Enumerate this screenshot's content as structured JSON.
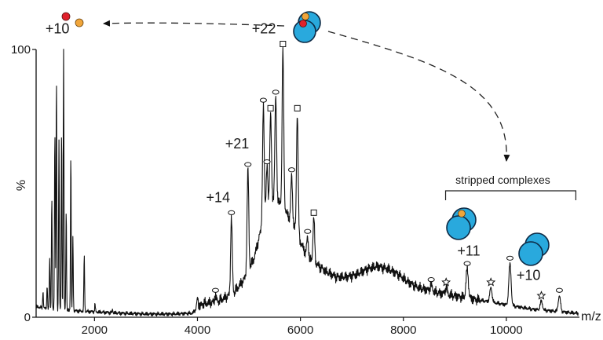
{
  "chart_data": {
    "type": "line",
    "title": "",
    "xlabel": "m/z",
    "ylabel": "%",
    "xlim": [
      1000,
      11400
    ],
    "ylim": [
      0,
      100
    ],
    "x_ticks": [
      {
        "value": 2000,
        "label": "2000"
      },
      {
        "value": 4000,
        "label": "4000"
      },
      {
        "value": 6000,
        "label": "6000"
      },
      {
        "value": 8000,
        "label": "8000"
      },
      {
        "value": 10000,
        "label": "10000"
      }
    ],
    "y_ticks": [
      {
        "value": 0,
        "label": "0"
      },
      {
        "value": 100,
        "label": "100"
      }
    ],
    "baseline": [
      [
        860,
        4
      ],
      [
        1100,
        3
      ],
      [
        1500,
        2.5
      ],
      [
        2000,
        2
      ],
      [
        2500,
        1.5
      ],
      [
        3000,
        1.2
      ],
      [
        3500,
        1.2
      ],
      [
        3900,
        1.5
      ],
      [
        4100,
        5
      ],
      [
        4400,
        6
      ],
      [
        4700,
        9
      ],
      [
        4900,
        14
      ],
      [
        5100,
        22
      ],
      [
        5300,
        38
      ],
      [
        5500,
        45
      ],
      [
        5700,
        40
      ],
      [
        5850,
        35
      ],
      [
        6000,
        28
      ],
      [
        6150,
        22
      ],
      [
        6300,
        20
      ],
      [
        6500,
        17
      ],
      [
        6700,
        15
      ],
      [
        6900,
        15
      ],
      [
        7100,
        16
      ],
      [
        7300,
        18
      ],
      [
        7500,
        19
      ],
      [
        7700,
        18
      ],
      [
        7900,
        16
      ],
      [
        8100,
        13
      ],
      [
        8300,
        11
      ],
      [
        8500,
        10
      ],
      [
        8700,
        9
      ],
      [
        9000,
        8
      ],
      [
        9300,
        7
      ],
      [
        9600,
        6
      ],
      [
        9900,
        5
      ],
      [
        10200,
        4
      ],
      [
        10500,
        3
      ],
      [
        10800,
        2.5
      ],
      [
        11100,
        2
      ],
      [
        11350,
        1.5
      ]
    ],
    "peaks": [
      {
        "mz": 1000,
        "intensity": 10,
        "marker": ""
      },
      {
        "mz": 1080,
        "intensity": 12,
        "marker": ""
      },
      {
        "mz": 1130,
        "intensity": 22,
        "marker": ""
      },
      {
        "mz": 1170,
        "intensity": 45,
        "marker": ""
      },
      {
        "mz": 1230,
        "intensity": 70,
        "marker": ""
      },
      {
        "mz": 1260,
        "intensity": 89,
        "marker": ""
      },
      {
        "mz": 1310,
        "intensity": 66,
        "marker": ""
      },
      {
        "mz": 1360,
        "intensity": 70,
        "marker": ""
      },
      {
        "mz": 1400,
        "intensity": 100,
        "marker": ""
      },
      {
        "mz": 1450,
        "intensity": 40,
        "marker": ""
      },
      {
        "mz": 1540,
        "intensity": 61,
        "marker": ""
      },
      {
        "mz": 1580,
        "intensity": 30,
        "marker": ""
      },
      {
        "mz": 1800,
        "intensity": 23,
        "marker": ""
      },
      {
        "mz": 2010,
        "intensity": 5,
        "marker": ""
      },
      {
        "mz": 2350,
        "intensity": 3,
        "marker": ""
      },
      {
        "mz": 4000,
        "intensity": 7,
        "marker": ""
      },
      {
        "mz": 4350,
        "intensity": 8,
        "marker": "circle"
      },
      {
        "mz": 4660,
        "intensity": 37,
        "marker": "circle"
      },
      {
        "mz": 4980,
        "intensity": 55,
        "marker": "circle"
      },
      {
        "mz": 5280,
        "intensity": 79,
        "marker": "circle"
      },
      {
        "mz": 5350,
        "intensity": 56,
        "marker": "circle"
      },
      {
        "mz": 5420,
        "intensity": 76,
        "marker": "square"
      },
      {
        "mz": 5520,
        "intensity": 82,
        "marker": "circle"
      },
      {
        "mz": 5660,
        "intensity": 100,
        "marker": "square"
      },
      {
        "mz": 5830,
        "intensity": 53,
        "marker": "circle"
      },
      {
        "mz": 5940,
        "intensity": 76,
        "marker": "square"
      },
      {
        "mz": 6140,
        "intensity": 30,
        "marker": "circle"
      },
      {
        "mz": 6260,
        "intensity": 37,
        "marker": "square"
      },
      {
        "mz": 8540,
        "intensity": 12,
        "marker": "circle"
      },
      {
        "mz": 8830,
        "intensity": 11,
        "marker": "star"
      },
      {
        "mz": 9240,
        "intensity": 18,
        "marker": "circle"
      },
      {
        "mz": 9700,
        "intensity": 11,
        "marker": "star"
      },
      {
        "mz": 10070,
        "intensity": 20,
        "marker": "circle"
      },
      {
        "mz": 10680,
        "intensity": 6,
        "marker": "star"
      },
      {
        "mz": 11030,
        "intensity": 8,
        "marker": "circle"
      }
    ],
    "annotations": [
      {
        "text": "+10",
        "mz": 1280,
        "intensity": 106
      },
      {
        "text": "+22",
        "mz": 5290,
        "intensity": 106
      },
      {
        "text": "+21",
        "mz": 4770,
        "intensity": 63
      },
      {
        "text": "+14",
        "mz": 4400,
        "intensity": 43
      },
      {
        "text": "+11",
        "mz": 9270,
        "intensity": 23
      },
      {
        "text": "+10",
        "mz": 10430,
        "intensity": 14
      }
    ],
    "bracket": {
      "text": "stripped complexes",
      "from_mz": 8820,
      "to_mz": 11350
    }
  },
  "colors": {
    "trace": "#111111",
    "ligand_red": "#e0202b",
    "ligand_orange": "#f0a53a",
    "protein_blue": "#29a9dd",
    "protein_outline": "#0d2a45"
  },
  "icons": [
    "ligand-dots-icon",
    "complex-two-ligands-icon",
    "complex-one-ligand-icon",
    "apo-dimer-icon"
  ]
}
